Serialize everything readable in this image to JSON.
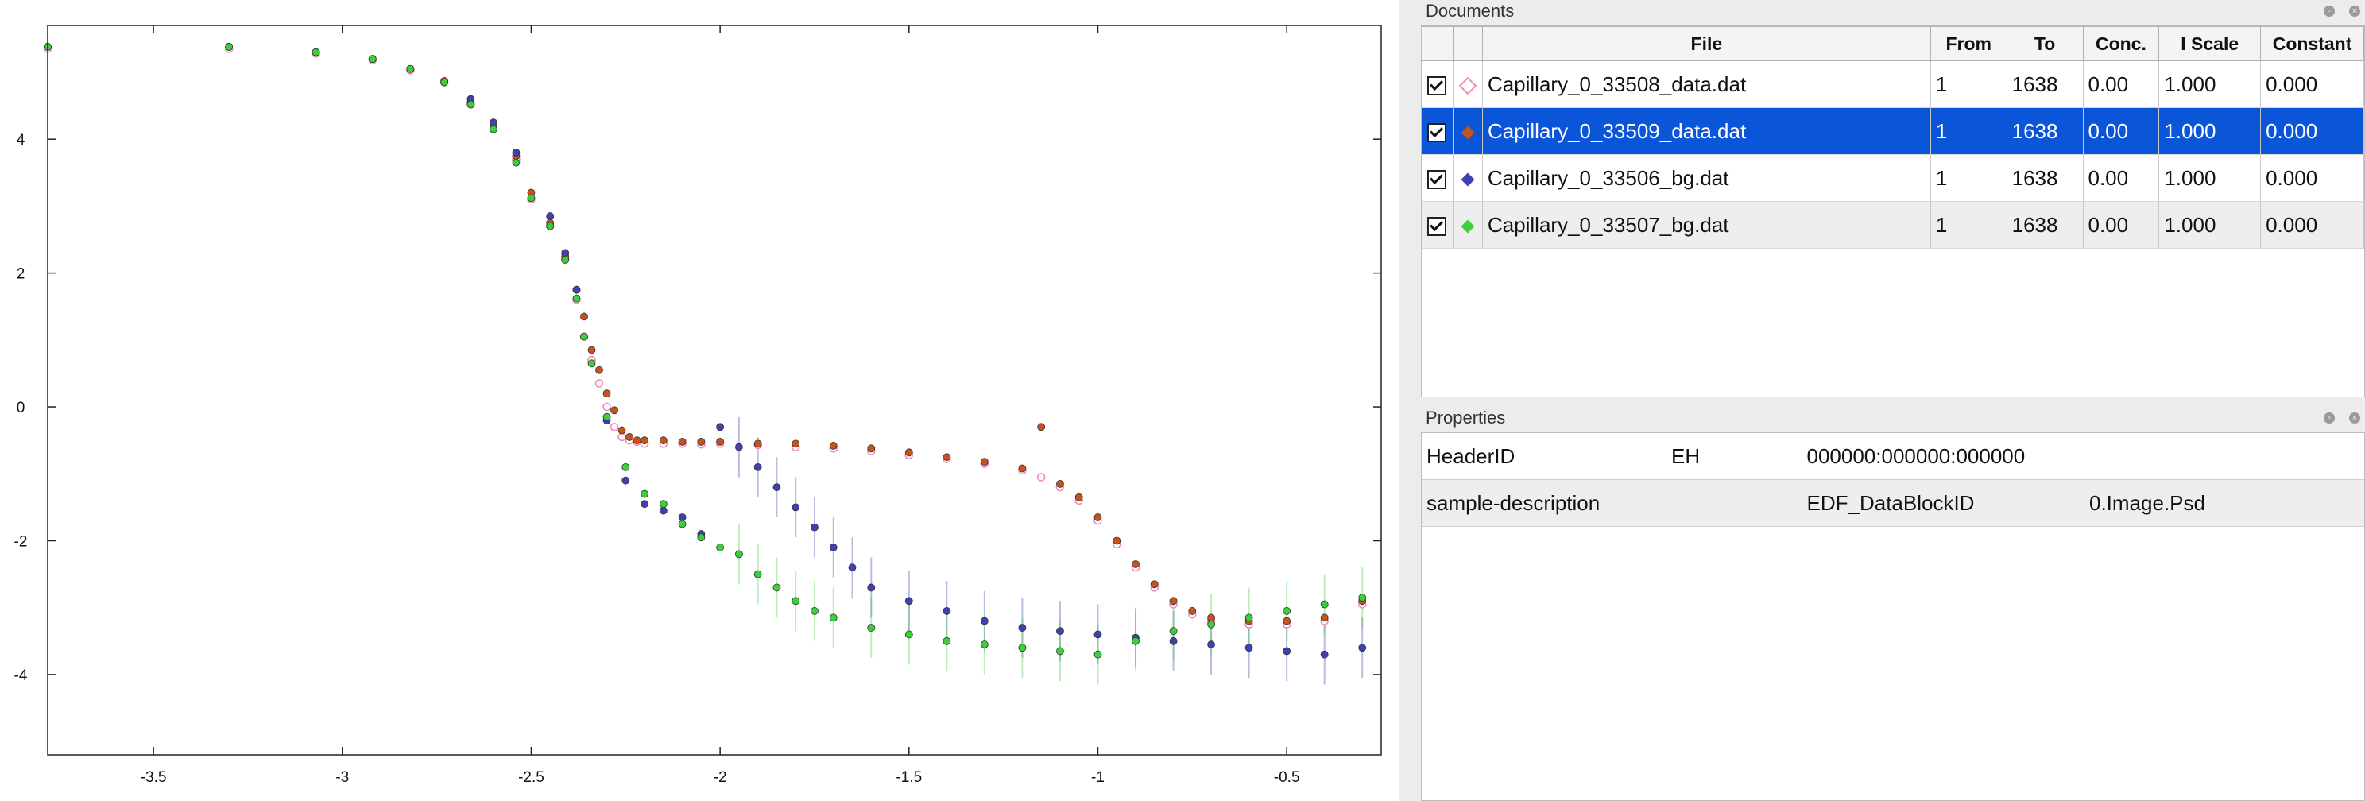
{
  "chart_data": {
    "type": "scatter",
    "title": "",
    "xlabel": "",
    "ylabel": "",
    "xlim": [
      -3.78,
      -0.25
    ],
    "ylim": [
      -5.2,
      5.7
    ],
    "xticks": [
      "-3.5",
      "-3",
      "-2.5",
      "-2",
      "-1.5",
      "-1",
      "-0.5"
    ],
    "xtick_values": [
      -3.5,
      -3,
      -2.5,
      -2,
      -1.5,
      -1,
      -0.5
    ],
    "yticks": [
      "4",
      "2",
      "0",
      "-2",
      "-4"
    ],
    "ytick_values": [
      4,
      2,
      0,
      -2,
      -4
    ],
    "grid": false,
    "legend": "none",
    "series": [
      {
        "color": "#f08cb8",
        "marker": "open-circle",
        "x": [
          -3.78,
          -3.3,
          -3.07,
          -2.92,
          -2.82,
          -2.73,
          -2.66,
          -2.6,
          -2.54,
          -2.5,
          -2.45,
          -2.41,
          -2.38,
          -2.36,
          -2.34,
          -2.32,
          -2.3,
          -2.28,
          -2.26,
          -2.24,
          -2.22,
          -2.2,
          -2.15,
          -2.1,
          -2.05,
          -2.0,
          -1.9,
          -1.8,
          -1.7,
          -1.6,
          -1.5,
          -1.4,
          -1.3,
          -1.2,
          -1.15,
          -1.1,
          -1.05,
          -1.0,
          -0.95,
          -0.9,
          -0.85,
          -0.8,
          -0.75,
          -0.7,
          -0.6,
          -0.5,
          -0.4,
          -0.3
        ],
        "y": [
          5.35,
          5.35,
          5.28,
          5.18,
          5.03,
          4.85,
          4.52,
          4.15,
          3.7,
          3.1,
          2.7,
          2.2,
          1.6,
          1.05,
          0.7,
          0.35,
          0.0,
          -0.3,
          -0.45,
          -0.5,
          -0.52,
          -0.55,
          -0.55,
          -0.55,
          -0.56,
          -0.55,
          -0.57,
          -0.6,
          -0.62,
          -0.66,
          -0.72,
          -0.78,
          -0.85,
          -0.95,
          -1.05,
          -1.2,
          -1.4,
          -1.7,
          -2.05,
          -2.4,
          -2.7,
          -2.95,
          -3.1,
          -3.2,
          -3.25,
          -3.25,
          -3.2,
          -2.95
        ]
      },
      {
        "color": "#c8521e",
        "marker": "filled-circle",
        "x": [
          -3.78,
          -3.3,
          -3.07,
          -2.92,
          -2.82,
          -2.73,
          -2.66,
          -2.6,
          -2.54,
          -2.5,
          -2.45,
          -2.41,
          -2.38,
          -2.36,
          -2.34,
          -2.32,
          -2.3,
          -2.28,
          -2.26,
          -2.24,
          -2.22,
          -2.2,
          -2.15,
          -2.1,
          -2.05,
          -2.0,
          -1.9,
          -1.8,
          -1.7,
          -1.6,
          -1.5,
          -1.4,
          -1.3,
          -1.2,
          -1.15,
          -1.1,
          -1.05,
          -1.0,
          -0.95,
          -0.9,
          -0.85,
          -0.8,
          -0.75,
          -0.7,
          -0.6,
          -0.5,
          -0.4,
          -0.3
        ],
        "y": [
          5.38,
          5.38,
          5.3,
          5.2,
          5.05,
          4.87,
          4.55,
          4.2,
          3.75,
          3.2,
          2.75,
          2.25,
          1.75,
          1.35,
          0.85,
          0.55,
          0.2,
          -0.05,
          -0.35,
          -0.45,
          -0.5,
          -0.5,
          -0.5,
          -0.52,
          -0.52,
          -0.52,
          -0.55,
          -0.55,
          -0.58,
          -0.62,
          -0.68,
          -0.75,
          -0.82,
          -0.92,
          -0.3,
          -1.15,
          -1.35,
          -1.65,
          -2.0,
          -2.35,
          -2.65,
          -2.9,
          -3.05,
          -3.15,
          -3.2,
          -3.2,
          -3.15,
          -2.9
        ]
      },
      {
        "color": "#4040b0",
        "marker": "filled-circle",
        "x": [
          -3.78,
          -3.3,
          -3.07,
          -2.92,
          -2.82,
          -2.66,
          -2.6,
          -2.54,
          -2.45,
          -2.41,
          -2.38,
          -2.3,
          -2.25,
          -2.2,
          -2.15,
          -2.1,
          -2.05,
          -2.0,
          -1.95,
          -1.9,
          -1.85,
          -1.8,
          -1.75,
          -1.7,
          -1.65,
          -1.6,
          -1.5,
          -1.4,
          -1.3,
          -1.2,
          -1.1,
          -1.0,
          -0.9,
          -0.8,
          -0.7,
          -0.6,
          -0.5,
          -0.4,
          -0.3
        ],
        "y": [
          5.38,
          5.38,
          5.3,
          5.2,
          5.05,
          4.6,
          4.25,
          3.8,
          2.85,
          2.3,
          1.75,
          -0.2,
          -1.1,
          -1.45,
          -1.55,
          -1.65,
          -1.9,
          -0.3,
          -0.6,
          -0.9,
          -1.2,
          -1.5,
          -1.8,
          -2.1,
          -2.4,
          -2.7,
          -2.9,
          -3.05,
          -3.2,
          -3.3,
          -3.35,
          -3.4,
          -3.45,
          -3.5,
          -3.55,
          -3.6,
          -3.65,
          -3.7,
          -3.6
        ]
      },
      {
        "color": "#3ad03a",
        "marker": "filled-circle",
        "x": [
          -3.78,
          -3.3,
          -3.07,
          -2.92,
          -2.82,
          -2.73,
          -2.66,
          -2.6,
          -2.54,
          -2.5,
          -2.45,
          -2.41,
          -2.38,
          -2.36,
          -2.34,
          -2.3,
          -2.25,
          -2.2,
          -2.15,
          -2.1,
          -2.05,
          -2.0,
          -1.95,
          -1.9,
          -1.85,
          -1.8,
          -1.75,
          -1.7,
          -1.6,
          -1.5,
          -1.4,
          -1.3,
          -1.2,
          -1.1,
          -1.0,
          -0.9,
          -0.8,
          -0.7,
          -0.6,
          -0.5,
          -0.4,
          -0.3
        ],
        "y": [
          5.38,
          5.38,
          5.3,
          5.2,
          5.05,
          4.85,
          4.52,
          4.15,
          3.65,
          3.12,
          2.7,
          2.2,
          1.62,
          1.05,
          0.65,
          -0.15,
          -0.9,
          -1.3,
          -1.45,
          -1.75,
          -1.95,
          -2.1,
          -2.2,
          -2.5,
          -2.7,
          -2.9,
          -3.05,
          -3.15,
          -3.3,
          -3.4,
          -3.5,
          -3.55,
          -3.6,
          -3.65,
          -3.7,
          -3.5,
          -3.35,
          -3.25,
          -3.15,
          -3.05,
          -2.95,
          -2.85
        ]
      }
    ]
  },
  "documents": {
    "title": "Documents",
    "columns": [
      "File",
      "From",
      "To",
      "Conc.",
      "I Scale",
      "Constant"
    ],
    "rows": [
      {
        "file": "Capillary_0_33508_data.dat",
        "from": "1",
        "to": "1638",
        "conc": "0.00",
        "iscale": "1.000",
        "constant": "0.000",
        "marker_color": "#f08cb8",
        "marker_icon": "open-diamond-icon"
      },
      {
        "file": "Capillary_0_33509_data.dat",
        "from": "1",
        "to": "1638",
        "conc": "0.00",
        "iscale": "1.000",
        "constant": "0.000",
        "marker_color": "#c8521e",
        "marker_icon": "filled-diamond-icon"
      },
      {
        "file": "Capillary_0_33506_bg.dat",
        "from": "1",
        "to": "1638",
        "conc": "0.00",
        "iscale": "1.000",
        "constant": "0.000",
        "marker_color": "#4040b0",
        "marker_icon": "filled-diamond-icon"
      },
      {
        "file": "Capillary_0_33507_bg.dat",
        "from": "1",
        "to": "1638",
        "conc": "0.00",
        "iscale": "1.000",
        "constant": "0.000",
        "marker_color": "#3ad03a",
        "marker_icon": "filled-diamond-icon"
      }
    ],
    "selected_index": 1,
    "selection_color": "#0b55d8"
  },
  "properties": {
    "title": "Properties",
    "rows": [
      {
        "c1": "HeaderID",
        "c2": "EH",
        "c3": "000000:000000:000000",
        "c4": ""
      },
      {
        "c1": "sample-description",
        "c2": "",
        "c3": "EDF_DataBlockID",
        "c4": "0.Image.Psd"
      }
    ]
  }
}
